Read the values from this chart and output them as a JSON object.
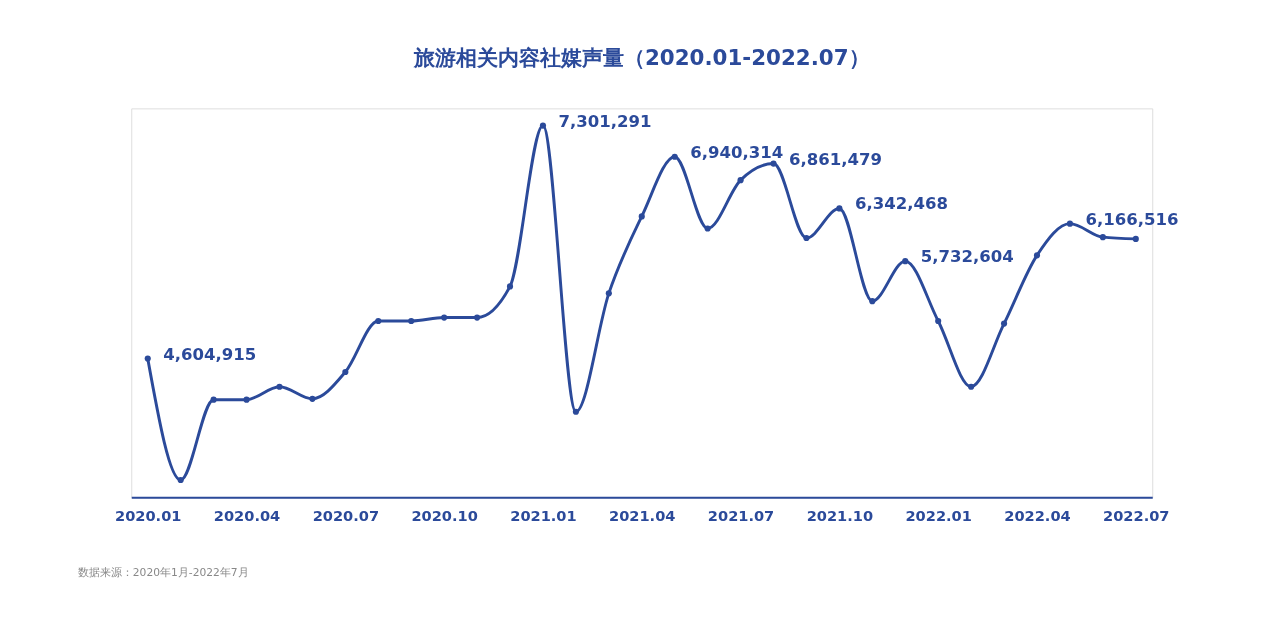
{
  "chart_data": {
    "type": "line",
    "title": "旅游相关内容社媒声量（2020.01-2022.07）",
    "categories": [
      "2020.01",
      null,
      null,
      "2020.04",
      null,
      null,
      "2020.07",
      null,
      null,
      "2020.10",
      null,
      null,
      "2021.01",
      null,
      null,
      "2021.04",
      null,
      null,
      "2021.07",
      null,
      null,
      "2021.10",
      null,
      null,
      "2022.01",
      null,
      null,
      "2022.04",
      null,
      null,
      "2022.07"
    ],
    "series": [
      {
        "color": "#2b4a9a",
        "values": [
          4604915,
          3200000,
          4130000,
          4130000,
          4280000,
          4140000,
          4450000,
          5040000,
          5040000,
          5080000,
          5080000,
          5440000,
          7301291,
          3990000,
          5360000,
          6250000,
          6940314,
          6110000,
          6670000,
          6861479,
          6000000,
          6342468,
          5270000,
          5732604,
          5040000,
          4280000,
          5010000,
          5800000,
          6166516,
          6010000,
          5990000
        ],
        "value_labels": [
          "4,604,915",
          null,
          null,
          null,
          null,
          null,
          null,
          null,
          null,
          null,
          null,
          null,
          "7,301,291",
          null,
          null,
          null,
          "6,940,314",
          null,
          null,
          "6,861,479",
          null,
          "6,342,468",
          null,
          "5,732,604",
          null,
          null,
          null,
          null,
          "6,166,516",
          null,
          null
        ]
      }
    ],
    "ylim": [
      3000000,
      7500000
    ],
    "grid": false,
    "marker": "circle",
    "line_style": "solid",
    "tick_labels": "x",
    "annotations": [
      "数据来源：2020年1月-2022年7月"
    ]
  }
}
